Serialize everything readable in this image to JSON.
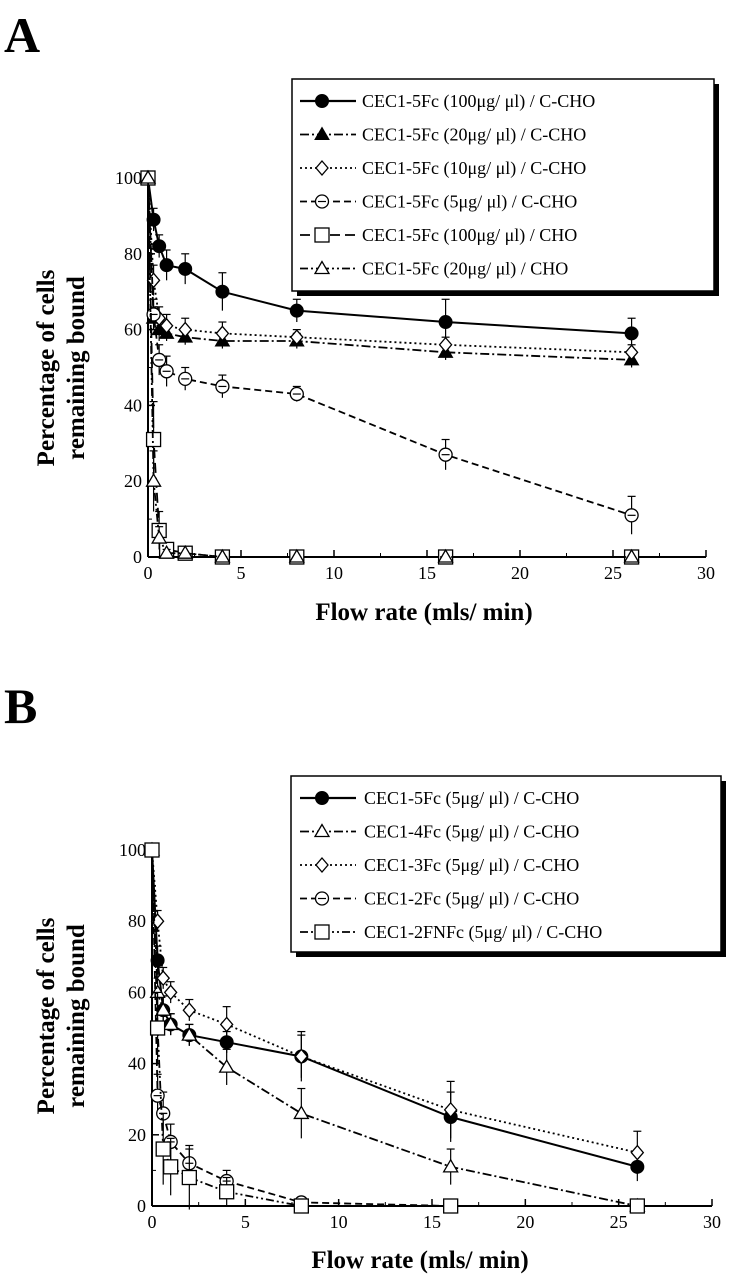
{
  "chart_data": [
    {
      "panel": "A",
      "type": "line",
      "xlabel": "Flow rate (mls/ min)",
      "ylabel": [
        "Percentage of cells",
        "remaining bound"
      ],
      "xlim": [
        0,
        30
      ],
      "ylim": [
        0,
        100
      ],
      "xticks": [
        "0",
        "5",
        "10",
        "15",
        "20",
        "25",
        "30"
      ],
      "yticks": [
        "0",
        "20",
        "40",
        "60",
        "80",
        "100"
      ],
      "grid": false,
      "legend_position": "top-right",
      "x": [
        0,
        0.3,
        0.6,
        1,
        2,
        4,
        8,
        16,
        26
      ],
      "series": [
        {
          "name": "CEC1-5Fc (100μg/ μl) / C-CHO",
          "marker": "circle-filled",
          "dash": "solid",
          "values": [
            100,
            89,
            82,
            77,
            76,
            70,
            65,
            62,
            59
          ],
          "err": [
            0,
            3,
            3,
            4,
            4,
            5,
            3,
            6,
            4
          ]
        },
        {
          "name": "CEC1-5Fc (20μg/ μl) / C-CHO",
          "marker": "triangle-filled",
          "dash": "dashdot",
          "values": [
            100,
            63,
            60,
            59,
            58,
            57,
            57,
            54,
            52
          ],
          "err": [
            0,
            3,
            3,
            2,
            2,
            2,
            2,
            2,
            2
          ]
        },
        {
          "name": "CEC1-5Fc (10μg/ μl) / C-CHO",
          "marker": "diamond-open",
          "dash": "dotted",
          "values": [
            100,
            73,
            63,
            61,
            60,
            59,
            58,
            56,
            54
          ],
          "err": [
            0,
            4,
            3,
            3,
            3,
            3,
            2,
            2,
            2
          ]
        },
        {
          "name": "CEC1-5Fc (5μg/ μl) / C-CHO",
          "marker": "circle-open",
          "dash": "dashed",
          "values": [
            100,
            64,
            52,
            49,
            47,
            45,
            43,
            27,
            11
          ],
          "err": [
            0,
            4,
            4,
            4,
            3,
            3,
            2,
            4,
            5
          ]
        },
        {
          "name": "CEC1-5Fc (100μg/ μl) / CHO",
          "marker": "square-open",
          "dash": "dash2",
          "values": [
            100,
            31,
            7,
            2,
            1,
            0,
            0,
            0,
            0
          ],
          "err": [
            0,
            10,
            5,
            1,
            0,
            0,
            0,
            0,
            0
          ]
        },
        {
          "name": "CEC1-5Fc (20μg/ μl) / CHO",
          "marker": "triangle-open",
          "dash": "dashdot2",
          "values": [
            100,
            20,
            5,
            1,
            1,
            0,
            0,
            0,
            0
          ],
          "err": [
            0,
            8,
            3,
            1,
            0,
            0,
            0,
            0,
            0
          ]
        }
      ]
    },
    {
      "panel": "B",
      "type": "line",
      "xlabel": "Flow rate (mls/ min)",
      "ylabel": [
        "Percentage of cells",
        "remaining bound"
      ],
      "xlim": [
        0,
        30
      ],
      "ylim": [
        0,
        100
      ],
      "xticks": [
        "0",
        "5",
        "10",
        "15",
        "20",
        "25",
        "30"
      ],
      "yticks": [
        "0",
        "20",
        "40",
        "60",
        "80",
        "100"
      ],
      "grid": false,
      "legend_position": "top-right",
      "x": [
        0,
        0.3,
        0.6,
        1,
        2,
        4,
        8,
        16,
        26
      ],
      "series": [
        {
          "name": "CEC1-5Fc (5μg/ μl) / C-CHO",
          "marker": "circle-filled",
          "dash": "solid",
          "values": [
            100,
            69,
            55,
            51,
            48,
            46,
            42,
            25,
            11
          ],
          "err": [
            0,
            4,
            4,
            3,
            3,
            3,
            6,
            7,
            4
          ]
        },
        {
          "name": "CEC1-4Fc (5μg/ μl) / C-CHO",
          "marker": "triangle-open",
          "dash": "dashdot",
          "values": [
            100,
            60,
            55,
            51,
            48,
            39,
            26,
            11,
            0
          ],
          "err": [
            0,
            4,
            4,
            3,
            3,
            5,
            7,
            5,
            0
          ]
        },
        {
          "name": "CEC1-3Fc (5μg/ μl) / C-CHO",
          "marker": "diamond-open",
          "dash": "dotted",
          "values": [
            100,
            80,
            64,
            60,
            55,
            51,
            42,
            27,
            15
          ],
          "err": [
            0,
            3,
            3,
            3,
            3,
            5,
            7,
            8,
            6
          ]
        },
        {
          "name": "CEC1-2Fc (5μg/ μl) / C-CHO",
          "marker": "circle-open",
          "dash": "dashed",
          "values": [
            100,
            31,
            26,
            18,
            12,
            7,
            1,
            0,
            0
          ],
          "err": [
            0,
            6,
            6,
            5,
            4,
            3,
            1,
            0,
            0
          ]
        },
        {
          "name": "CEC1-2FNFc (5μg/ μl) / C-CHO",
          "marker": "square-open",
          "dash": "dashdot2",
          "values": [
            100,
            50,
            16,
            11,
            8,
            4,
            0,
            0,
            0
          ],
          "err": [
            0,
            10,
            10,
            8,
            9,
            4,
            0,
            0,
            0
          ]
        }
      ]
    }
  ]
}
